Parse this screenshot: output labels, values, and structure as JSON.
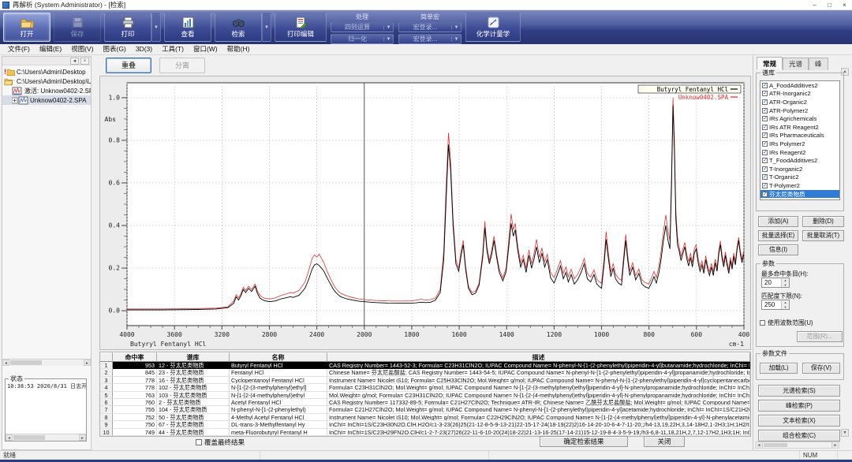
{
  "window": {
    "title": "再解析 (System Administrator) - [检索]",
    "minimize": "–",
    "maximize": "□",
    "close": "×"
  },
  "menu_bar": {
    "items": [
      "文件(F)",
      "编辑(E)",
      "视图(V)",
      "图表(G)",
      "3D(3)",
      "工具(T)",
      "窗口(W)",
      "帮助(H)"
    ]
  },
  "toolbar": {
    "buttons": [
      {
        "label": "打开",
        "icon": "open-folder-icon",
        "state": "active",
        "dropdown": false
      },
      {
        "label": "保存",
        "icon": "save-icon",
        "state": "disabled",
        "dropdown": false
      },
      {
        "label": "打印",
        "icon": "print-icon",
        "state": "normal",
        "dropdown": true
      },
      {
        "label": "查看",
        "icon": "view-chart-icon",
        "state": "normal",
        "dropdown": false
      },
      {
        "label": "检索",
        "icon": "search-binoculars-icon",
        "state": "normal",
        "dropdown": true
      },
      {
        "label": "打印编辑",
        "icon": "print-edit-icon",
        "state": "normal",
        "dropdown": false
      }
    ],
    "process_group": {
      "label": "处理",
      "items": [
        "四则运算",
        "归一化"
      ]
    },
    "macro_group": {
      "label": "简单宏",
      "items": [
        "宏登录...",
        "宏登录..."
      ]
    },
    "chemometrics_label": "化学计量学"
  },
  "left_panel": {
    "tree": [
      {
        "label": "C:\\Users\\Admin\\Desktop",
        "icon": "folder-alert",
        "level": 0
      },
      {
        "label": "C:\\Users\\Admin\\Desktop\\U",
        "icon": "folder-open",
        "level": 0
      },
      {
        "label": "激活: Unknow0402-2.SPA",
        "icon": "spectrum",
        "level": 1,
        "selected": false
      },
      {
        "label": "Unknow0402-2.SPA",
        "icon": "spectrum-expand",
        "level": 1,
        "selected": true
      }
    ],
    "status_box": {
      "title": "状态",
      "log": "10:38:53 2020/8/31 日志开始, 用户名"
    }
  },
  "view_buttons": {
    "overlay": "重叠",
    "separate": "分离"
  },
  "chart": {
    "legend": [
      {
        "label": "Butyryl Fentanyl HCl",
        "color": "#000000"
      },
      {
        "label": "Unknow0402.SPA",
        "color": "#e03131"
      }
    ],
    "bottom_left_label": "Butyryl Fentanyl HCl",
    "x_unit": "cm-1",
    "y_label": "Abs"
  },
  "chart_data": {
    "type": "line",
    "title": "",
    "xlabel": "cm-1",
    "ylabel": "Abs",
    "x_ticks": [
      4000,
      3600,
      3200,
      2800,
      2400,
      2000,
      1800,
      1600,
      1400,
      1200,
      1000,
      800,
      600,
      400
    ],
    "x_scale_note": "wavenumber axis with scale break at 2000 (400/div above, 200/div below)",
    "y_ticks": [
      "1.0",
      "0.8",
      "0.6",
      "0.4",
      "0.2",
      "0.0"
    ],
    "ylim": [
      0,
      1.0
    ],
    "cursor_x": 2000,
    "series_names": [
      "Butyryl Fentanyl HCl",
      "Unknow0402.SPA"
    ],
    "series_colors": [
      "#000000",
      "#e03131"
    ],
    "points": [
      [
        4000,
        0.004,
        0.008
      ],
      [
        3700,
        0.004,
        0.008
      ],
      [
        3400,
        0.006,
        0.01
      ],
      [
        3250,
        0.008,
        0.012
      ],
      [
        3150,
        0.014,
        0.018
      ],
      [
        3100,
        0.035,
        0.045
      ],
      [
        3080,
        0.065,
        0.075
      ],
      [
        3060,
        0.05,
        0.06
      ],
      [
        3040,
        0.07,
        0.08
      ],
      [
        3020,
        0.1,
        0.11
      ],
      [
        3000,
        0.085,
        0.095
      ],
      [
        2975,
        0.105,
        0.115
      ],
      [
        2950,
        0.09,
        0.1
      ],
      [
        2920,
        0.115,
        0.125
      ],
      [
        2900,
        0.08,
        0.092
      ],
      [
        2880,
        0.06,
        0.072
      ],
      [
        2860,
        0.052,
        0.064
      ],
      [
        2840,
        0.047,
        0.058
      ],
      [
        2800,
        0.042,
        0.055
      ],
      [
        2750,
        0.046,
        0.06
      ],
      [
        2700,
        0.056,
        0.072
      ],
      [
        2650,
        0.062,
        0.08
      ],
      [
        2620,
        0.066,
        0.085
      ],
      [
        2600,
        0.062,
        0.082
      ],
      [
        2550,
        0.072,
        0.095
      ],
      [
        2500,
        0.105,
        0.135
      ],
      [
        2470,
        0.145,
        0.185
      ],
      [
        2440,
        0.195,
        0.245
      ],
      [
        2420,
        0.215,
        0.262
      ],
      [
        2400,
        0.22,
        0.252
      ],
      [
        2380,
        0.212,
        0.265
      ],
      [
        2360,
        0.2,
        0.245
      ],
      [
        2340,
        0.185,
        0.225
      ],
      [
        2320,
        0.162,
        0.195
      ],
      [
        2300,
        0.14,
        0.168
      ],
      [
        2280,
        0.12,
        0.145
      ],
      [
        2260,
        0.1,
        0.122
      ],
      [
        2240,
        0.086,
        0.105
      ],
      [
        2220,
        0.075,
        0.092
      ],
      [
        2200,
        0.066,
        0.082
      ],
      [
        2150,
        0.056,
        0.07
      ],
      [
        2100,
        0.05,
        0.062
      ],
      [
        2050,
        0.045,
        0.056
      ],
      [
        2000,
        0.042,
        0.052
      ],
      [
        1950,
        0.038,
        0.048
      ],
      [
        1900,
        0.036,
        0.046
      ],
      [
        1850,
        0.035,
        0.045
      ],
      [
        1800,
        0.035,
        0.046
      ],
      [
        1780,
        0.037,
        0.05
      ],
      [
        1760,
        0.04,
        0.054
      ],
      [
        1740,
        0.038,
        0.05
      ],
      [
        1720,
        0.04,
        0.052
      ],
      [
        1700,
        0.05,
        0.06
      ],
      [
        1680,
        0.085,
        0.1
      ],
      [
        1665,
        0.24,
        0.28
      ],
      [
        1655,
        0.52,
        0.58
      ],
      [
        1645,
        0.78,
        0.835
      ],
      [
        1636,
        0.66,
        0.7
      ],
      [
        1626,
        0.4,
        0.43
      ],
      [
        1614,
        0.22,
        0.24
      ],
      [
        1602,
        0.185,
        0.2
      ],
      [
        1592,
        0.26,
        0.28
      ],
      [
        1583,
        0.31,
        0.33
      ],
      [
        1573,
        0.195,
        0.21
      ],
      [
        1561,
        0.105,
        0.115
      ],
      [
        1546,
        0.075,
        0.085
      ],
      [
        1531,
        0.082,
        0.092
      ],
      [
        1516,
        0.12,
        0.13
      ],
      [
        1501,
        0.25,
        0.27
      ],
      [
        1492,
        0.39,
        0.42
      ],
      [
        1483,
        0.28,
        0.3
      ],
      [
        1473,
        0.22,
        0.235
      ],
      [
        1463,
        0.265,
        0.285
      ],
      [
        1453,
        0.33,
        0.35
      ],
      [
        1443,
        0.255,
        0.27
      ],
      [
        1431,
        0.18,
        0.195
      ],
      [
        1416,
        0.14,
        0.155
      ],
      [
        1402,
        0.185,
        0.2
      ],
      [
        1391,
        0.3,
        0.33
      ],
      [
        1381,
        0.41,
        0.455
      ],
      [
        1372,
        0.35,
        0.38
      ],
      [
        1364,
        0.38,
        0.41
      ],
      [
        1353,
        0.28,
        0.3
      ],
      [
        1341,
        0.205,
        0.225
      ],
      [
        1330,
        0.24,
        0.26
      ],
      [
        1318,
        0.18,
        0.2
      ],
      [
        1306,
        0.26,
        0.285
      ],
      [
        1295,
        0.2,
        0.22
      ],
      [
        1285,
        0.24,
        0.265
      ],
      [
        1274,
        0.3,
        0.335
      ],
      [
        1262,
        0.225,
        0.25
      ],
      [
        1251,
        0.27,
        0.295
      ],
      [
        1240,
        0.205,
        0.23
      ],
      [
        1229,
        0.24,
        0.265
      ],
      [
        1215,
        0.155,
        0.18
      ],
      [
        1200,
        0.13,
        0.155
      ],
      [
        1186,
        0.17,
        0.195
      ],
      [
        1173,
        0.21,
        0.235
      ],
      [
        1161,
        0.15,
        0.175
      ],
      [
        1150,
        0.18,
        0.205
      ],
      [
        1140,
        0.135,
        0.16
      ],
      [
        1128,
        0.17,
        0.195
      ],
      [
        1115,
        0.125,
        0.15
      ],
      [
        1101,
        0.145,
        0.17
      ],
      [
        1086,
        0.18,
        0.205
      ],
      [
        1073,
        0.22,
        0.245
      ],
      [
        1060,
        0.15,
        0.175
      ],
      [
        1046,
        0.135,
        0.158
      ],
      [
        1032,
        0.17,
        0.192
      ],
      [
        1020,
        0.125,
        0.148
      ],
      [
        1008,
        0.112,
        0.135
      ],
      [
        1000,
        0.105,
        0.128
      ],
      [
        989,
        0.22,
        0.245
      ],
      [
        981,
        0.335,
        0.372
      ],
      [
        972,
        0.25,
        0.275
      ],
      [
        961,
        0.16,
        0.182
      ],
      [
        951,
        0.2,
        0.222
      ],
      [
        941,
        0.15,
        0.172
      ],
      [
        929,
        0.13,
        0.152
      ],
      [
        916,
        0.12,
        0.142
      ],
      [
        906,
        0.24,
        0.265
      ],
      [
        898,
        0.33,
        0.358
      ],
      [
        890,
        0.24,
        0.262
      ],
      [
        881,
        0.165,
        0.185
      ],
      [
        869,
        0.205,
        0.225
      ],
      [
        856,
        0.145,
        0.165
      ],
      [
        843,
        0.175,
        0.195
      ],
      [
        830,
        0.125,
        0.145
      ],
      [
        816,
        0.112,
        0.132
      ],
      [
        801,
        0.105,
        0.125
      ],
      [
        790,
        0.13,
        0.152
      ],
      [
        779,
        0.16,
        0.185
      ],
      [
        769,
        0.13,
        0.155
      ],
      [
        758,
        0.18,
        0.21
      ],
      [
        748,
        0.25,
        0.285
      ],
      [
        739,
        0.33,
        0.37
      ],
      [
        729,
        0.4,
        0.45
      ],
      [
        720,
        0.33,
        0.375
      ],
      [
        712,
        0.29,
        0.33
      ],
      [
        705,
        0.6,
        0.65
      ],
      [
        699,
        0.965,
        1.0
      ],
      [
        693,
        0.75,
        0.8
      ],
      [
        687,
        0.43,
        0.47
      ],
      [
        680,
        0.31,
        0.345
      ],
      [
        673,
        0.28,
        0.3
      ],
      [
        665,
        0.235,
        0.255
      ],
      [
        657,
        0.27,
        0.29
      ],
      [
        649,
        0.3,
        0.32
      ],
      [
        641,
        0.245,
        0.265
      ],
      [
        633,
        0.21,
        0.23
      ],
      [
        625,
        0.25,
        0.27
      ],
      [
        617,
        0.205,
        0.225
      ],
      [
        609,
        0.27,
        0.29
      ],
      [
        601,
        0.29,
        0.31
      ],
      [
        593,
        0.225,
        0.245
      ],
      [
        585,
        0.185,
        0.205
      ],
      [
        577,
        0.215,
        0.233
      ],
      [
        569,
        0.175,
        0.193
      ],
      [
        561,
        0.24,
        0.258
      ],
      [
        553,
        0.195,
        0.213
      ],
      [
        545,
        0.165,
        0.183
      ],
      [
        537,
        0.205,
        0.222
      ],
      [
        529,
        0.165,
        0.182
      ],
      [
        521,
        0.225,
        0.242
      ],
      [
        513,
        0.185,
        0.202
      ],
      [
        506,
        0.265,
        0.282
      ],
      [
        499,
        0.31,
        0.328
      ],
      [
        492,
        0.245,
        0.262
      ],
      [
        485,
        0.205,
        0.222
      ],
      [
        478,
        0.26,
        0.276
      ],
      [
        471,
        0.215,
        0.231
      ],
      [
        464,
        0.175,
        0.191
      ],
      [
        457,
        0.235,
        0.25
      ],
      [
        450,
        0.195,
        0.21
      ],
      [
        443,
        0.255,
        0.27
      ],
      [
        436,
        0.215,
        0.23
      ],
      [
        429,
        0.285,
        0.3
      ],
      [
        422,
        0.33,
        0.345
      ],
      [
        415,
        0.265,
        0.28
      ],
      [
        408,
        0.225,
        0.24
      ],
      [
        401,
        0.265,
        0.28
      ]
    ]
  },
  "results_table": {
    "columns": [
      "",
      "命中率",
      "谱库",
      "名称",
      "描述"
    ],
    "selected_row": 0,
    "rows": [
      {
        "num": "1",
        "hit": "953",
        "library": "12 - 芬太尼类物质",
        "name": "Butyryl Fentanyl HCl",
        "desc": "CAS Registry Number= 1443-52-3; Formula= C23H31ClN2O; IUPAC Compound Name= N-phenyl-N-[1-(2-phenylethyl)piperidin-4-yl]butanamide;hydrochloride; InChI= InChI=1S/C23H30N2O.ClH/c1-2-9-23(26)25(21-12-7-"
      },
      {
        "num": "2",
        "hit": "845",
        "library": "23 - 芬太尼类物质",
        "name": "Fentanyl HCl",
        "desc": "Chinese Name= 芬太尼盐酸盐; CAS Registry Number= 1443-54-5; IUPAC Compound Name= N-phenyl-N-[1-(2-phenylethyl)piperidin-4-yl]propanamide;hydrochloride; InChI= InChI=1S/C22H28N2O.ClH/c1-2-22(25)24(2"
      },
      {
        "num": "3",
        "hit": "778",
        "library": "16 - 芬太尼类物质",
        "name": "Cyclopentanoyl Fentanyl HCl",
        "desc": "Instrument Name= Nicolet iS10; Formula= C25H33ClN2O; Mol.Weight= g/mol; IUPAC Compound Name= N-phenyl-N-[1-(2-phenylethyl)piperidin-4-yl]cyclopentanecarboxamide;hydrochloride; InChI= InChI=1S/C25H32N2O"
      },
      {
        "num": "4",
        "hit": "778",
        "library": "102 - 芬太尼类物质",
        "name": "N-[1-[2-(3-methylphenyl)ethyl]",
        "desc": "Formula= C23H31ClN2O; Mol.Weight= g/mol; IUPAC Compound Name= N-[1-[2-(3-methylphenyl)ethyl]piperidin-4-yl]-N-phenylpropanamide;hydrochloride; InChI= InChI=1S/C23H30N2O.ClH/c1-3-23(26)25(21-10-5-4-6-11"
      },
      {
        "num": "5",
        "hit": "763",
        "library": "103 - 芬太尼类物质",
        "name": "N-[1-[2-(4-methylphenyl)ethyl",
        "desc": "Mol.Weight= g/mol; Formula= C23H31ClN2O; IUPAC Compound Name= N-[1-[2-(4-methylphenyl)ethyl]piperidin-4-yl]-N-phenylpropanamide;hydrochloride; InChI= InChI=1S/C23H30N2O.ClH/c1-3-23(26)25(21-7-5-4-6-8-2"
      },
      {
        "num": "6",
        "hit": "760",
        "library": "2 - 芬太尼类物质",
        "name": "Acetyl Fentanyl HCl",
        "desc": "CAS Registry Number= 117332-89-5; Formula= C21H27ClN2O; Technique= ATR-IR; Chinese Name= 乙酰芬太尼盐酸盐; Mol.Weight= g/mol; IUPAC Compound Name= N-phenyl-N-[1-(2-phenylethyl)piperidin-4-yl]acetam"
      },
      {
        "num": "7",
        "hit": "755",
        "library": "104 - 芬太尼类物质",
        "name": "N-phenyl-N-[1-(2-phenylethyl)",
        "desc": "Formula= C21H27ClN2O; Mol.Weight= g/mol; IUPAC Compound Name= N-phenyl-N-[1-(2-phenylethyl)piperidin-4-yl]acetamide;hydrochloride; InChI= InChI=1S/C21H26N2O.ClH/c1-18(24)23(20-10-6-3-7-11-20)21-13-16-"
      },
      {
        "num": "8",
        "hit": "752",
        "library": "50 - 芬太尼类物质",
        "name": "4-Methyl Acetyl Fentanyl HCl",
        "desc": "Instrument Name= Nicolet iS10; Mol.Weight= g/mol; Formula= C22H29ClN2O; IUPAC Compound Name= N-[1-[2-(4-methylphenyl)ethyl]piperidin-4-yl]-N-phenylacetamide;hydrochloride; InChI= InChI=1S/C22H28N2O.ClH/"
      },
      {
        "num": "9",
        "hit": "750",
        "library": "67 - 芬太尼类物质",
        "name": "DL-trans-3-Methylfentanyl Hy",
        "desc": "InChI= InChI=1S/C23H30N2O.ClH.H2O/c1-3-23(26)25(21-12-8-5-9-13-21)22-15-17-24(18-19(22)2)16-14-20-10-6-4-7-11-20;;/h4-13,19,22H,3,14-18H2,1-2H3;1H;1H2/t19-,22-;;/m0../s1; InChI Key= ODRLMZAHURRIU-"
      },
      {
        "num": "10",
        "hit": "749",
        "library": "44 - 芬太尼类物质",
        "name": "meta-Fluorobutyryl Fentanyl H",
        "desc": "InChI= InChI=1S/C23H29FN2O.ClH/c1-2-7-23(27)26(22-11-6-10-20(24)18-22)21-13-16-25(17-14-21)15-12-19-8-4-3-5-9-19;/h3-6,8-11,18,21H,2,7,12-17H2,1H3;1H; InChI Key= ZIKJCMLTDKHFFP-UHFFFAOYSA-N; M"
      }
    ]
  },
  "bottom_bar": {
    "checkbox_label": "覆盖最终结果",
    "confirm_label": "确定检索结果",
    "close_label": "关闭"
  },
  "right_panel": {
    "tabs": [
      {
        "label": "常规",
        "active": true
      },
      {
        "label": "光谱",
        "active": false
      },
      {
        "label": "峰",
        "active": false
      }
    ],
    "library_group": {
      "title": "谱库",
      "selected_index": 13,
      "items": [
        "A_FoodAdditives2",
        "ATR-Inorganic2",
        "ATR-Organic2",
        "ATR-Polymer2",
        "IRs Agrichemicals",
        "IRs ATR Reagent2",
        "IRs Pharmaceuticals",
        "IRs Polymer2",
        "IRs Reagent2",
        "T_FoodAdditives2",
        "T-Inorganic2",
        "T-Organic2",
        "T-Polymer2",
        "芬太尼类物质"
      ]
    },
    "library_buttons": [
      "添加(A)",
      "删除(D)",
      "批量选择(E)",
      "批量取消(T)",
      "信息(I)"
    ],
    "params_group": {
      "title": "参数",
      "max_hits_label": "最多命中条目(H):",
      "max_hits_value": "20",
      "min_match_label": "匹配度下限(N):",
      "min_match_value": "250",
      "use_range_label": "使用波数范围(U)",
      "range_button_label": "范围(R)..."
    },
    "param_file_group": {
      "title": "参数文件",
      "load_label": "加载(L)",
      "save_label": "保存(V)"
    },
    "search_buttons": [
      "光谱检索(S)",
      "峰检索(P)",
      "文本检索(X)",
      "组合检索(C)"
    ]
  },
  "status_bar": {
    "ready": "就绪",
    "num": "NUM"
  },
  "colors": {
    "toolbar_blue": "#303f85",
    "selection_blue": "#2e7cd6",
    "trace_black": "#000000",
    "trace_red": "#e03131"
  }
}
